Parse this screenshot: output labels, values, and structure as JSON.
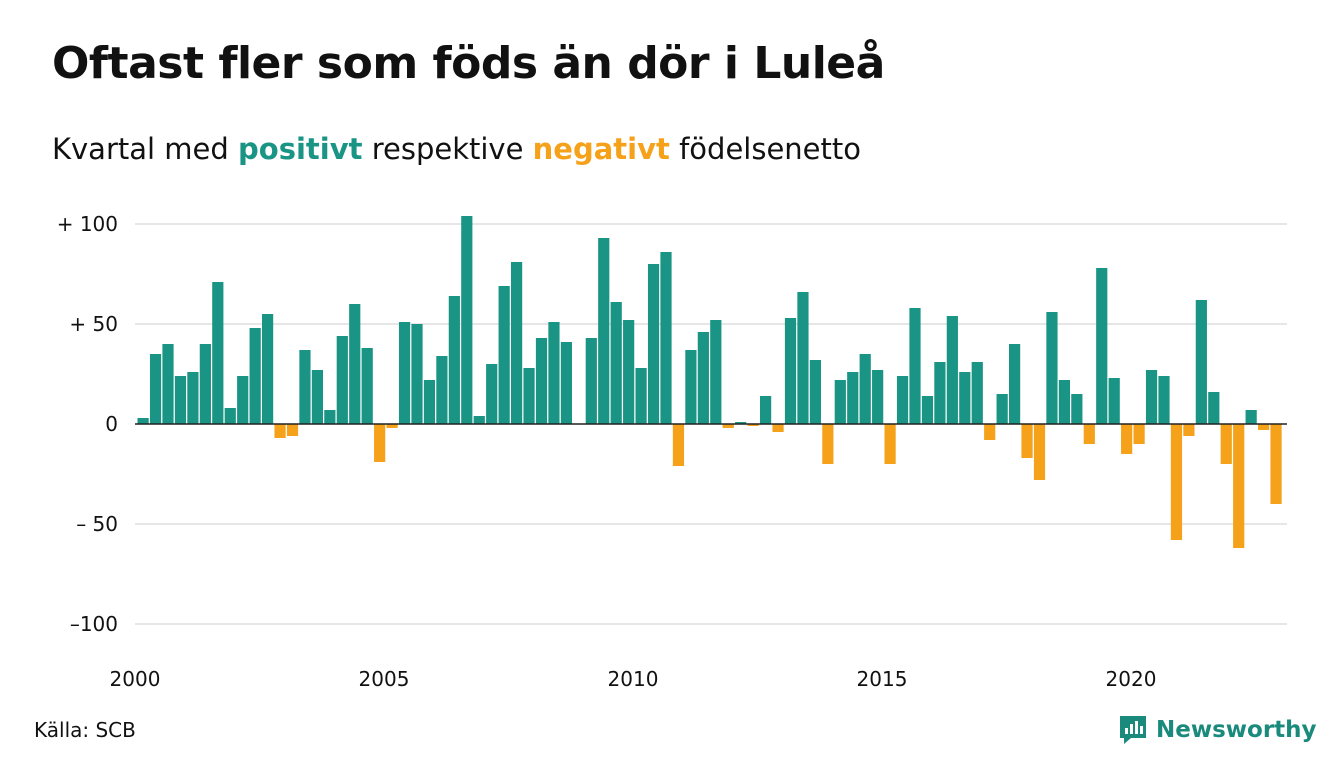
{
  "title": "Oftast fler som föds än dör i Luleå",
  "subtitle": {
    "prefix": "Kvartal med",
    "positive_word": "positivt",
    "middle": "respektive",
    "negative_word": "negativt",
    "suffix": "födelsenetto"
  },
  "source": "Källa: SCB",
  "brand": "Newsworthy",
  "colors": {
    "positive": "#1a9484",
    "negative": "#f5a11a",
    "grid": "#dddddd",
    "brand": "#1a8a7c"
  },
  "chart_data": {
    "type": "bar",
    "title": "Oftast fler som föds än dör i Luleå",
    "subtitle": "Kvartal med positivt respektive negativt födelsenetto",
    "x_start": "2000 Q1",
    "x_step": "quarter",
    "x_ticks": [
      {
        "label": "2000",
        "year": 2000
      },
      {
        "label": "2005",
        "year": 2005
      },
      {
        "label": "2010",
        "year": 2010
      },
      {
        "label": "2015",
        "year": 2015
      },
      {
        "label": "2020",
        "year": 2020
      }
    ],
    "y_ticks": [
      {
        "label": "+ 100",
        "value": 100
      },
      {
        "label": "+  50",
        "value": 50
      },
      {
        "label": "0",
        "value": 0
      },
      {
        "label": "– 50",
        "value": -50
      },
      {
        "label": "–100",
        "value": -100
      }
    ],
    "ylim": [
      -100,
      100
    ],
    "grid": true,
    "values": [
      3,
      35,
      40,
      24,
      26,
      40,
      71,
      8,
      24,
      48,
      55,
      -7,
      -6,
      37,
      27,
      7,
      44,
      60,
      38,
      -19,
      -2,
      51,
      50,
      22,
      34,
      64,
      104,
      4,
      30,
      69,
      81,
      28,
      43,
      51,
      41,
      0,
      43,
      93,
      61,
      52,
      28,
      80,
      86,
      -21,
      37,
      46,
      52,
      -2,
      1,
      -1,
      14,
      -4,
      53,
      66,
      32,
      -20,
      22,
      26,
      35,
      27,
      -20,
      24,
      58,
      14,
      31,
      54,
      26,
      31,
      -8,
      15,
      40,
      -17,
      -28,
      56,
      22,
      15,
      -10,
      78,
      23,
      -15,
      -10,
      27,
      24,
      -58,
      -6,
      62,
      16,
      -20,
      -62,
      7,
      -3,
      -40
    ]
  }
}
